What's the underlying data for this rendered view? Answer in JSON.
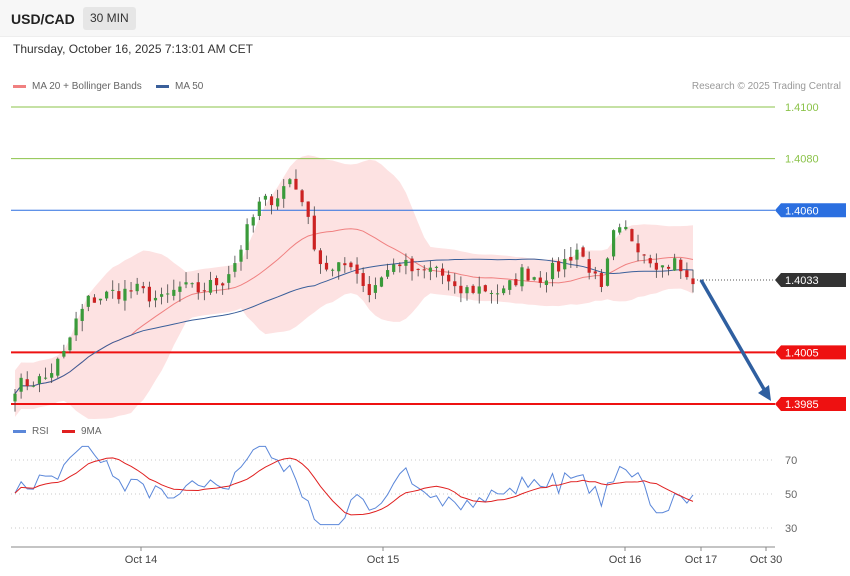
{
  "header": {
    "symbol": "USD/CAD",
    "timeframe": "30 MIN"
  },
  "datetime": "Thursday, October 16, 2025 7:13:01 AM CET",
  "legend": {
    "ma20": "MA 20 + Bollinger Bands",
    "ma50": "MA 50",
    "rsi": "RSI",
    "rsi_ma": "9MA"
  },
  "copyright": "Research © 2025 Trading Central",
  "colors": {
    "up": "#3a9a3a",
    "down": "#cc2222",
    "bb_fill": "#fde2e2",
    "ma20": "#f08080",
    "ma50": "#3a5f9a",
    "rsi": "#5b87d9",
    "rsi_ma": "#e02020",
    "resistance": "#2b6fe0",
    "support": "#ee1111",
    "target_line": "#8bc34a",
    "arrow": "#2f5fa0"
  },
  "chart_data": {
    "type": "candlestick",
    "x_ticks": [
      "Oct 14",
      "Oct 15",
      "Oct 16",
      "Oct 17",
      "Oct 30"
    ],
    "y_range": [
      1.3972,
      1.411
    ],
    "levels": [
      {
        "value": 1.41,
        "label": "1.4100",
        "kind": "target"
      },
      {
        "value": 1.408,
        "label": "1.4080",
        "kind": "target"
      },
      {
        "value": 1.406,
        "label": "1.4060",
        "kind": "resistance"
      },
      {
        "value": 1.4033,
        "label": "1.4033",
        "kind": "last"
      },
      {
        "value": 1.4005,
        "label": "1.4005",
        "kind": "support"
      },
      {
        "value": 1.3985,
        "label": "1.3985",
        "kind": "support"
      }
    ],
    "forecast_arrow": {
      "from": 1.4033,
      "to": 1.3985
    },
    "rsi": {
      "y_ticks": [
        70,
        50,
        30
      ]
    }
  }
}
